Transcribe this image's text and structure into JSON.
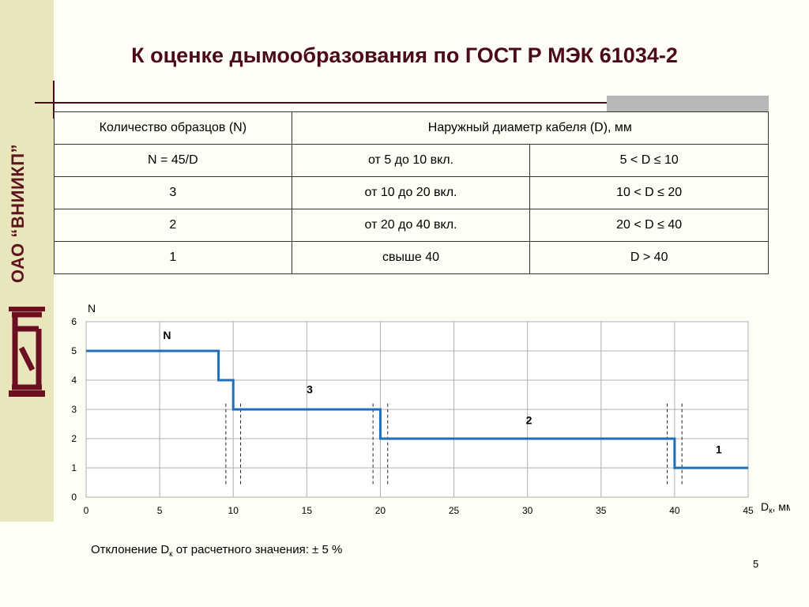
{
  "org": "ОАО “ВНИИКП”",
  "title": "К оценке дымообразования по ГОСТ Р МЭК 61034-2",
  "table": {
    "header": [
      "Количество образцов (N)",
      "Наружный диаметр кабеля (D), мм"
    ],
    "rows": [
      [
        "N = 45/D",
        "от 5 до 10 вкл.",
        "5 < D ≤ 10"
      ],
      [
        "3",
        "от 10 до 20 вкл.",
        "10 < D ≤ 20"
      ],
      [
        "2",
        "от 20 до 40 вкл.",
        "20 < D ≤ 40"
      ],
      [
        "1",
        "свыше 40",
        "D > 40"
      ]
    ]
  },
  "chart_data": {
    "type": "line",
    "ylabel": "N",
    "xlabel_main": "D",
    "xlabel_sub": "к",
    "xlabel_unit": ", мм",
    "xlim": [
      0,
      45
    ],
    "ylim": [
      0,
      6
    ],
    "x_ticks": [
      0,
      5,
      10,
      15,
      20,
      25,
      30,
      35,
      40,
      45
    ],
    "y_ticks": [
      0,
      1,
      2,
      3,
      4,
      5,
      6
    ],
    "grid": true,
    "line_color": "#1f6fb8",
    "series": [
      {
        "points": [
          [
            0,
            5
          ],
          [
            9,
            5
          ],
          [
            9,
            4
          ],
          [
            10,
            4
          ],
          [
            10,
            3
          ],
          [
            20,
            3
          ],
          [
            20,
            2
          ],
          [
            40,
            2
          ],
          [
            40,
            1
          ],
          [
            45,
            1
          ]
        ]
      }
    ],
    "deviation_markers": [
      {
        "x": 10,
        "low": 9.5,
        "high": 10.5
      },
      {
        "x": 20,
        "low": 19.5,
        "high": 20.5
      },
      {
        "x": 40,
        "low": 39.5,
        "high": 40.5
      }
    ],
    "annotations": [
      {
        "text": "N",
        "x": 5.5,
        "y": 5.4
      },
      {
        "text": "3",
        "x": 15.2,
        "y": 3.55
      },
      {
        "text": "2",
        "x": 30.1,
        "y": 2.5
      },
      {
        "text": "1",
        "x": 43,
        "y": 1.5
      }
    ]
  },
  "footnote": {
    "before": "Отклонение D",
    "sub": "к",
    "after": " от расчетного значения: ± 5 %"
  },
  "page_number": "5"
}
